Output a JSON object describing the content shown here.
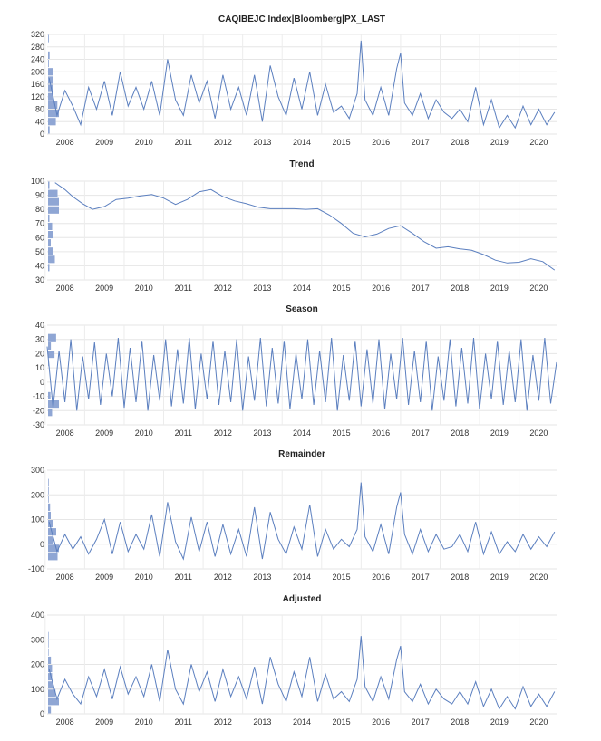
{
  "chart_data": [
    {
      "type": "line",
      "title": "CAQIBEJC Index|Bloomberg|PX_LAST",
      "xlabel": "",
      "ylabel": "",
      "x_tick_labels": [
        "2008",
        "2009",
        "2010",
        "2011",
        "2012",
        "2013",
        "2014",
        "2015",
        "2016",
        "2017",
        "2018",
        "2019",
        "2020"
      ],
      "x_range": [
        2007.55,
        2020.45
      ],
      "ylim": [
        0,
        320
      ],
      "y_ticks": [
        0,
        40,
        80,
        120,
        160,
        200,
        240,
        280,
        320
      ],
      "y_tick_labels": [
        "0",
        "40",
        "80",
        "120",
        "160",
        "200",
        "240",
        "280",
        "320"
      ],
      "x": [
        2007.6,
        2007.8,
        2008.0,
        2008.2,
        2008.4,
        2008.6,
        2008.8,
        2009.0,
        2009.2,
        2009.4,
        2009.6,
        2009.8,
        2010.0,
        2010.2,
        2010.4,
        2010.6,
        2010.8,
        2011.0,
        2011.2,
        2011.4,
        2011.6,
        2011.8,
        2012.0,
        2012.2,
        2012.4,
        2012.6,
        2012.8,
        2013.0,
        2013.2,
        2013.4,
        2013.6,
        2013.8,
        2014.0,
        2014.2,
        2014.4,
        2014.6,
        2014.8,
        2015.0,
        2015.2,
        2015.4,
        2015.5,
        2015.6,
        2015.8,
        2016.0,
        2016.2,
        2016.4,
        2016.5,
        2016.6,
        2016.8,
        2017.0,
        2017.2,
        2017.4,
        2017.6,
        2017.8,
        2018.0,
        2018.2,
        2018.4,
        2018.6,
        2018.8,
        2019.0,
        2019.2,
        2019.4,
        2019.6,
        2019.8,
        2020.0,
        2020.2,
        2020.4
      ],
      "values": [
        180,
        60,
        140,
        90,
        30,
        150,
        80,
        170,
        60,
        200,
        90,
        150,
        80,
        170,
        60,
        240,
        110,
        60,
        190,
        100,
        170,
        50,
        190,
        80,
        150,
        60,
        190,
        40,
        220,
        120,
        60,
        180,
        80,
        200,
        60,
        160,
        70,
        90,
        50,
        130,
        300,
        110,
        60,
        150,
        60,
        210,
        260,
        100,
        60,
        130,
        50,
        110,
        70,
        50,
        80,
        40,
        150,
        30,
        110,
        20,
        60,
        20,
        90,
        30,
        80,
        30,
        70
      ]
    },
    {
      "type": "line",
      "title": "Trend",
      "xlabel": "",
      "ylabel": "",
      "x_tick_labels": [
        "2008",
        "2009",
        "2010",
        "2011",
        "2012",
        "2013",
        "2014",
        "2015",
        "2016",
        "2017",
        "2018",
        "2019",
        "2020"
      ],
      "x_range": [
        2007.55,
        2020.45
      ],
      "ylim": [
        30,
        100
      ],
      "y_ticks": [
        30,
        40,
        50,
        60,
        70,
        80,
        90,
        100
      ],
      "y_tick_labels": [
        "30",
        "40",
        "50",
        "60",
        "70",
        "80",
        "90",
        "100"
      ],
      "x": [
        2007.75,
        2008.0,
        2008.2,
        2008.45,
        2008.7,
        2009.0,
        2009.3,
        2009.6,
        2009.9,
        2010.2,
        2010.5,
        2010.8,
        2011.1,
        2011.4,
        2011.7,
        2012.0,
        2012.3,
        2012.6,
        2012.9,
        2013.2,
        2013.5,
        2013.8,
        2014.1,
        2014.4,
        2014.7,
        2015.0,
        2015.3,
        2015.6,
        2015.9,
        2016.2,
        2016.5,
        2016.8,
        2017.1,
        2017.4,
        2017.7,
        2018.0,
        2018.3,
        2018.6,
        2018.9,
        2019.2,
        2019.5,
        2019.8,
        2020.1,
        2020.4
      ],
      "values": [
        99,
        94,
        89,
        84,
        80,
        82,
        87,
        88,
        89.5,
        90.5,
        88,
        83.5,
        87,
        92.5,
        94,
        89,
        86,
        84,
        81.5,
        80.5,
        80.5,
        80.5,
        80,
        80.5,
        76,
        70,
        63,
        60.5,
        62.5,
        66.5,
        68.5,
        63,
        57,
        52.5,
        53.5,
        52,
        51,
        48,
        44,
        42,
        42.5,
        45,
        43,
        37
      ]
    },
    {
      "type": "line",
      "title": "Season",
      "xlabel": "",
      "ylabel": "",
      "x_tick_labels": [
        "2008",
        "2009",
        "2010",
        "2011",
        "2012",
        "2013",
        "2014",
        "2015",
        "2016",
        "2017",
        "2018",
        "2019",
        "2020"
      ],
      "x_range": [
        2007.55,
        2020.45
      ],
      "ylim": [
        -30,
        40
      ],
      "y_ticks": [
        -30,
        -20,
        -10,
        0,
        10,
        20,
        30,
        40
      ],
      "y_tick_labels": [
        "-30",
        "-20",
        "-10",
        "0",
        "10",
        "20",
        "30",
        "40"
      ],
      "x": [
        2007.55,
        2007.7,
        2007.85,
        2008.0,
        2008.15,
        2008.3,
        2008.45,
        2008.6,
        2008.75,
        2008.9,
        2009.05,
        2009.2,
        2009.35,
        2009.5,
        2009.65,
        2009.8,
        2009.95,
        2010.1,
        2010.25,
        2010.4,
        2010.55,
        2010.7,
        2010.85,
        2011.0,
        2011.15,
        2011.3,
        2011.45,
        2011.6,
        2011.75,
        2011.9,
        2012.05,
        2012.2,
        2012.35,
        2012.5,
        2012.65,
        2012.8,
        2012.95,
        2013.1,
        2013.25,
        2013.4,
        2013.55,
        2013.7,
        2013.85,
        2014.0,
        2014.15,
        2014.3,
        2014.45,
        2014.6,
        2014.75,
        2014.9,
        2015.05,
        2015.2,
        2015.35,
        2015.5,
        2015.65,
        2015.8,
        2015.95,
        2016.1,
        2016.25,
        2016.4,
        2016.55,
        2016.7,
        2016.85,
        2017.0,
        2017.15,
        2017.3,
        2017.45,
        2017.6,
        2017.75,
        2017.9,
        2018.05,
        2018.2,
        2018.35,
        2018.5,
        2018.65,
        2018.8,
        2018.95,
        2019.1,
        2019.25,
        2019.4,
        2019.55,
        2019.7,
        2019.85,
        2020.0,
        2020.15,
        2020.3,
        2020.45
      ],
      "values": [
        25,
        -18,
        22,
        -14,
        30,
        -20,
        18,
        -12,
        28,
        -16,
        20,
        -10,
        31,
        -18,
        24,
        -14,
        29,
        -20,
        19,
        -13,
        30,
        -17,
        23,
        -15,
        31,
        -19,
        20,
        -12,
        29,
        -16,
        22,
        -14,
        30,
        -20,
        18,
        -13,
        31,
        -17,
        24,
        -15,
        29,
        -19,
        20,
        -12,
        30,
        -16,
        22,
        -14,
        31,
        -20,
        19,
        -13,
        29,
        -17,
        23,
        -15,
        30,
        -19,
        20,
        -12,
        31,
        -16,
        22,
        -14,
        29,
        -20,
        18,
        -13,
        30,
        -17,
        24,
        -15,
        31,
        -19,
        20,
        -12,
        29,
        -16,
        22,
        -14,
        30,
        -20,
        19,
        -13,
        31,
        -15,
        14
      ]
    },
    {
      "type": "line",
      "title": "Remainder",
      "xlabel": "",
      "ylabel": "",
      "x_tick_labels": [
        "2008",
        "2009",
        "2010",
        "2011",
        "2012",
        "2013",
        "2014",
        "2015",
        "2016",
        "2017",
        "2018",
        "2019",
        "2020"
      ],
      "x_range": [
        2007.55,
        2020.45
      ],
      "ylim": [
        -100,
        300
      ],
      "y_ticks": [
        -100,
        0,
        100,
        200,
        300
      ],
      "y_tick_labels": [
        "-100",
        "0",
        "100",
        "200",
        "300"
      ],
      "x": [
        2007.6,
        2007.8,
        2008.0,
        2008.2,
        2008.4,
        2008.6,
        2008.8,
        2009.0,
        2009.2,
        2009.4,
        2009.6,
        2009.8,
        2010.0,
        2010.2,
        2010.4,
        2010.6,
        2010.8,
        2011.0,
        2011.2,
        2011.4,
        2011.6,
        2011.8,
        2012.0,
        2012.2,
        2012.4,
        2012.6,
        2012.8,
        2013.0,
        2013.2,
        2013.4,
        2013.6,
        2013.8,
        2014.0,
        2014.2,
        2014.4,
        2014.6,
        2014.8,
        2015.0,
        2015.2,
        2015.4,
        2015.5,
        2015.6,
        2015.8,
        2016.0,
        2016.2,
        2016.4,
        2016.5,
        2016.6,
        2016.8,
        2017.0,
        2017.2,
        2017.4,
        2017.6,
        2017.8,
        2018.0,
        2018.2,
        2018.4,
        2018.6,
        2018.8,
        2019.0,
        2019.2,
        2019.4,
        2019.6,
        2019.8,
        2020.0,
        2020.2,
        2020.4
      ],
      "values": [
        90,
        -30,
        40,
        -20,
        30,
        -40,
        20,
        100,
        -40,
        90,
        -30,
        40,
        -20,
        120,
        -50,
        170,
        10,
        -60,
        110,
        -30,
        90,
        -50,
        80,
        -40,
        60,
        -50,
        150,
        -60,
        130,
        20,
        -40,
        70,
        -20,
        160,
        -50,
        60,
        -20,
        20,
        -10,
        60,
        250,
        30,
        -30,
        80,
        -40,
        150,
        210,
        40,
        -40,
        60,
        -30,
        40,
        -20,
        -10,
        40,
        -30,
        90,
        -40,
        50,
        -40,
        10,
        -30,
        40,
        -20,
        30,
        -10,
        50
      ]
    },
    {
      "type": "line",
      "title": "Adjusted",
      "xlabel": "",
      "ylabel": "",
      "x_tick_labels": [
        "2008",
        "2009",
        "2010",
        "2011",
        "2012",
        "2013",
        "2014",
        "2015",
        "2016",
        "2017",
        "2018",
        "2019",
        "2020"
      ],
      "x_range": [
        2007.55,
        2020.45
      ],
      "ylim": [
        0,
        400
      ],
      "y_ticks": [
        0,
        100,
        200,
        300,
        400
      ],
      "y_tick_labels": [
        "0",
        "100",
        "200",
        "300",
        "400"
      ],
      "x": [
        2007.6,
        2007.8,
        2008.0,
        2008.2,
        2008.4,
        2008.6,
        2008.8,
        2009.0,
        2009.2,
        2009.4,
        2009.6,
        2009.8,
        2010.0,
        2010.2,
        2010.4,
        2010.6,
        2010.8,
        2011.0,
        2011.2,
        2011.4,
        2011.6,
        2011.8,
        2012.0,
        2012.2,
        2012.4,
        2012.6,
        2012.8,
        2013.0,
        2013.2,
        2013.4,
        2013.6,
        2013.8,
        2014.0,
        2014.2,
        2014.4,
        2014.6,
        2014.8,
        2015.0,
        2015.2,
        2015.4,
        2015.5,
        2015.6,
        2015.8,
        2016.0,
        2016.2,
        2016.4,
        2016.5,
        2016.6,
        2016.8,
        2017.0,
        2017.2,
        2017.4,
        2017.6,
        2017.8,
        2018.0,
        2018.2,
        2018.4,
        2018.6,
        2018.8,
        2019.0,
        2019.2,
        2019.4,
        2019.6,
        2019.8,
        2020.0,
        2020.2,
        2020.4
      ],
      "values": [
        180,
        60,
        140,
        80,
        40,
        150,
        70,
        180,
        60,
        190,
        80,
        150,
        70,
        200,
        50,
        260,
        100,
        40,
        200,
        90,
        170,
        50,
        180,
        70,
        150,
        60,
        190,
        40,
        230,
        120,
        50,
        170,
        70,
        230,
        50,
        160,
        60,
        90,
        50,
        140,
        315,
        110,
        50,
        150,
        60,
        220,
        275,
        90,
        50,
        120,
        40,
        100,
        60,
        40,
        90,
        40,
        130,
        30,
        100,
        20,
        70,
        20,
        110,
        30,
        80,
        30,
        90
      ]
    }
  ]
}
